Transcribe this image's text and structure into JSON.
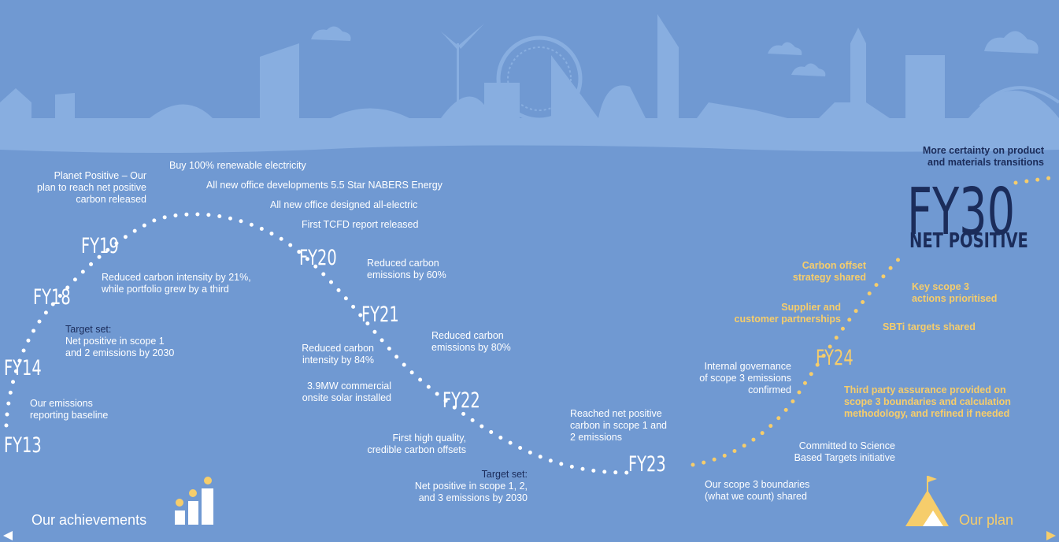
{
  "years": [
    "FY13",
    "FY14",
    "FY18",
    "FY19",
    "FY20",
    "FY21",
    "FY22",
    "FY23",
    "FY24",
    "FY30"
  ],
  "net_positive": "NET POSITIVE",
  "notes": [
    [
      "Our emissions",
      "reporting baseline"
    ],
    [
      "Target set:",
      "Net positive in scope 1",
      "and 2 emissions by 2030"
    ],
    [
      "Reduced carbon intensity by 21%,",
      "while portfolio grew by a third"
    ],
    [
      "Planet Positive – Our",
      "plan to reach net positive",
      "carbon released"
    ],
    [
      "Buy 100% renewable electricity"
    ],
    [
      "All new office developments 5.5 Star NABERS Energy"
    ],
    [
      "All new office designed all-electric"
    ],
    [
      "First TCFD report released"
    ],
    [
      "Reduced carbon",
      "emissions by 60%"
    ],
    [
      "Reduced carbon",
      "emissions by 80%"
    ],
    [
      "Reduced carbon",
      "intensity by 84%"
    ],
    [
      "3.9MW commercial",
      "onsite solar installed"
    ],
    [
      "First high quality,",
      "credible carbon offsets"
    ],
    [
      "Target set:",
      "Net positive in scope 1, 2,",
      "and 3 emissions by 2030"
    ],
    [
      "Reached net positive",
      "carbon in scope 1 and",
      "2 emissions"
    ],
    [
      "Internal governance",
      "of scope 3 emissions",
      "confirmed"
    ],
    [
      "Committed to Science",
      "Based Targets initiative"
    ],
    [
      "Our scope 3 boundaries",
      "(what we count) shared"
    ],
    [
      "Carbon offset",
      "strategy shared"
    ],
    [
      "Key scope 3",
      "actions prioritised"
    ],
    [
      "Supplier and",
      "customer partnerships"
    ],
    [
      "SBTi targets shared"
    ],
    [
      "Third party assurance provided on",
      "scope 3 boundaries and calculation",
      "methodology, and refined if needed"
    ],
    [
      "More certainty on product",
      "and materials transitions"
    ]
  ],
  "legend": {
    "achievements": "Our achievements",
    "plan": "Our plan"
  }
}
